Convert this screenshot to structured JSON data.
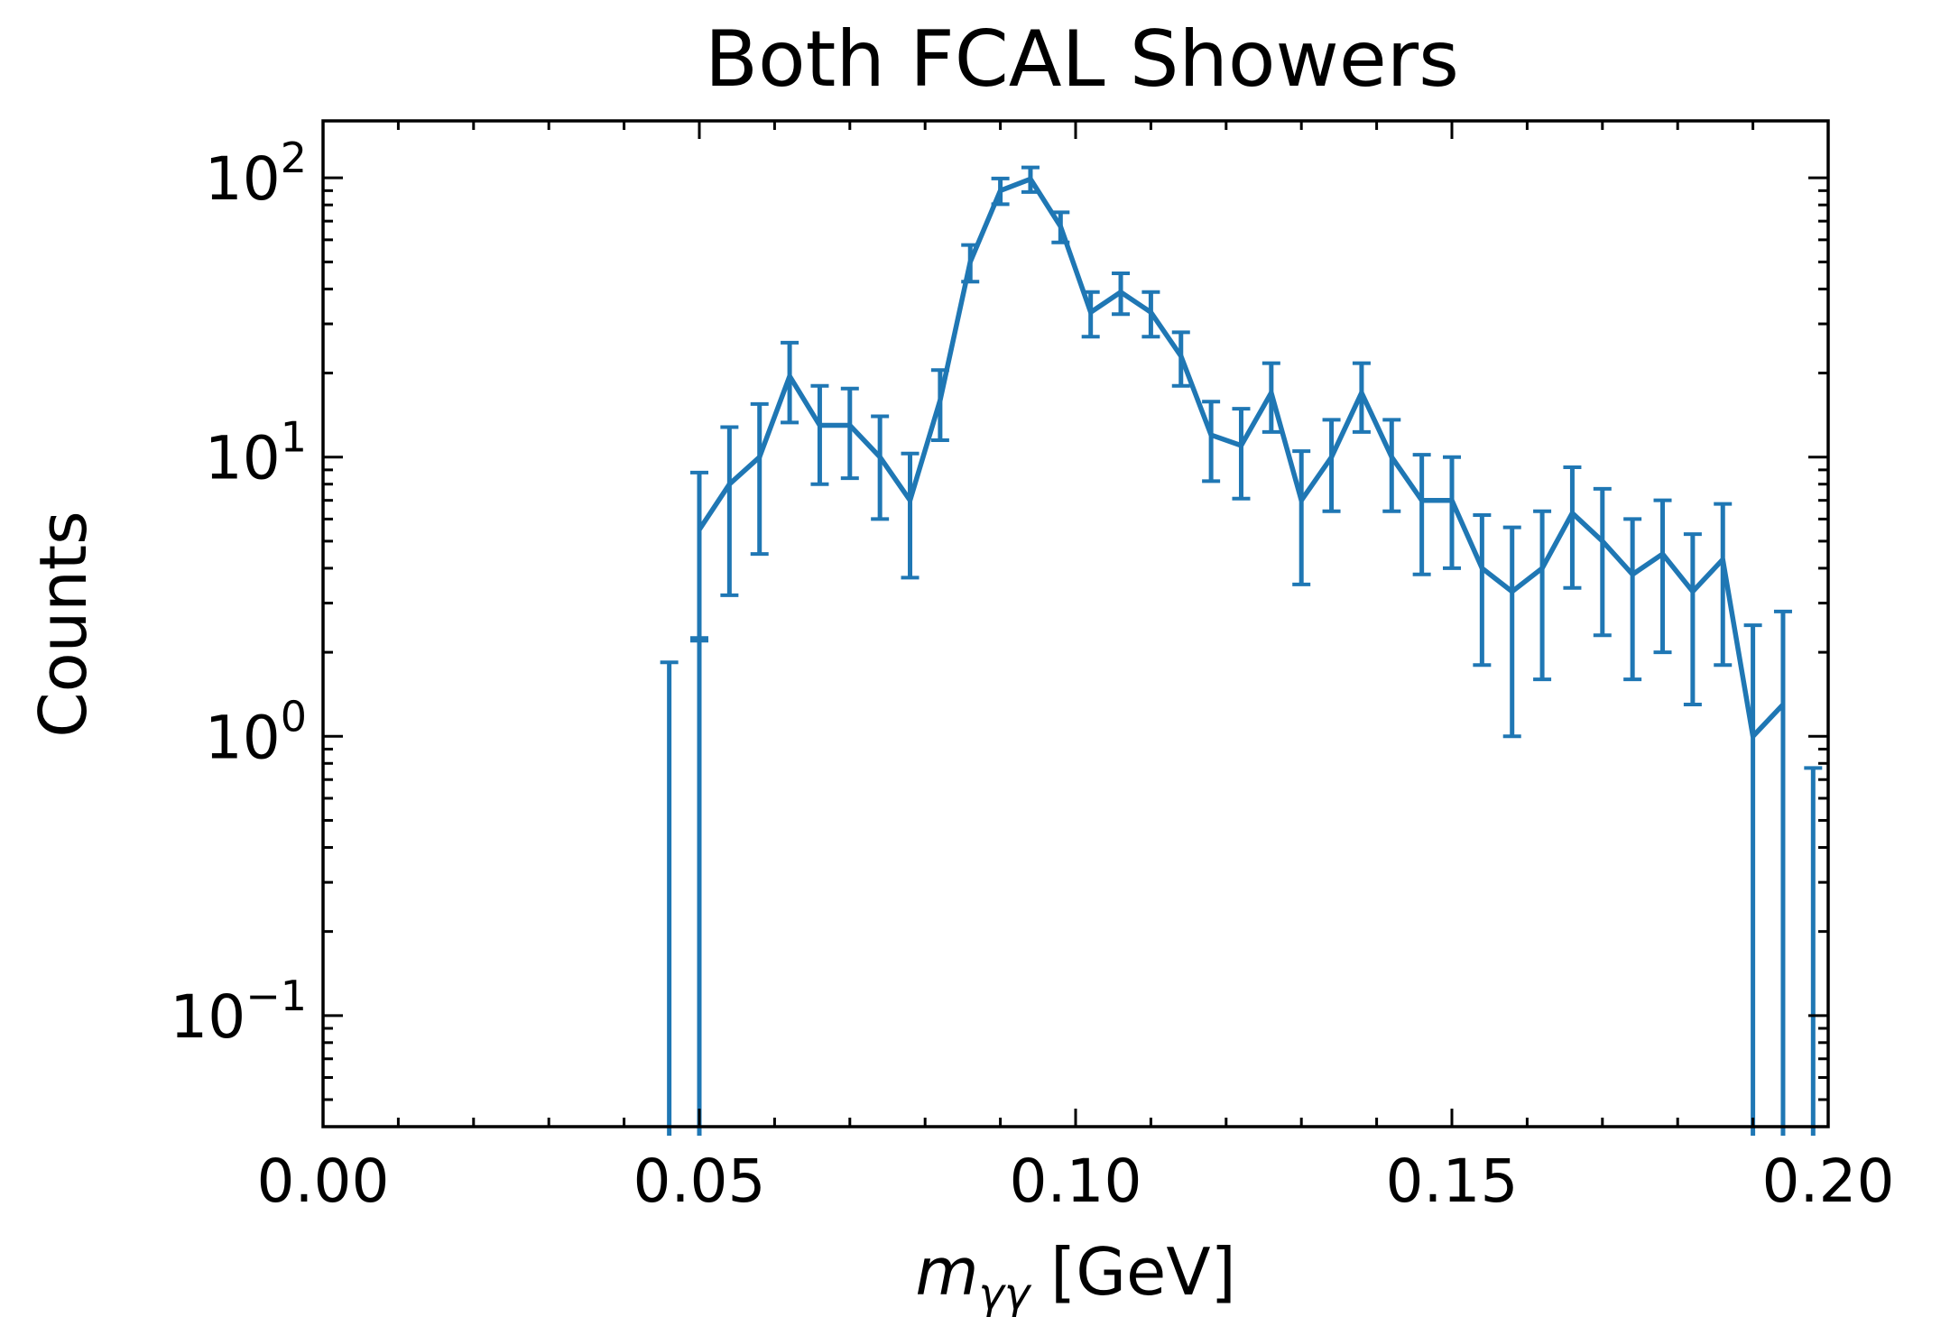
{
  "chart_data": {
    "type": "line",
    "title": "Both FCAL Showers",
    "xlabel": {
      "main": "m",
      "sub": "γγ",
      "unit": " [GeV]"
    },
    "ylabel": "Counts",
    "xlim": [
      0.0,
      0.2
    ],
    "ylim": [
      0.04,
      160
    ],
    "yscale": "log",
    "grid": false,
    "x_ticks": [
      {
        "value": 0.0,
        "label": "0.00"
      },
      {
        "value": 0.05,
        "label": "0.05"
      },
      {
        "value": 0.1,
        "label": "0.10"
      },
      {
        "value": 0.15,
        "label": "0.15"
      },
      {
        "value": 0.2,
        "label": "0.20"
      }
    ],
    "y_ticks": [
      {
        "value": 0.1,
        "base": "10",
        "exp": "−1"
      },
      {
        "value": 1,
        "base": "10",
        "exp": "0"
      },
      {
        "value": 10,
        "base": "10",
        "exp": "1"
      },
      {
        "value": 100,
        "base": "10",
        "exp": "2"
      }
    ],
    "series": [
      {
        "color": "#1f77b4",
        "points": [
          {
            "x": 0.046,
            "y": 0,
            "err": 1.84
          },
          {
            "x": 0.05,
            "y": 0,
            "err": 2.25
          },
          {
            "x": 0.05,
            "y": 5.5,
            "err": 3.3
          },
          {
            "x": 0.054,
            "y": 8.0,
            "err": 4.8
          },
          {
            "x": 0.058,
            "y": 10.0,
            "err": 5.5
          },
          {
            "x": 0.062,
            "y": 19.5,
            "err": 6.2
          },
          {
            "x": 0.066,
            "y": 13.0,
            "err": 5.0
          },
          {
            "x": 0.07,
            "y": 13.0,
            "err": 4.6
          },
          {
            "x": 0.074,
            "y": 10.0,
            "err": 4.0
          },
          {
            "x": 0.078,
            "y": 7.0,
            "err": 3.3
          },
          {
            "x": 0.082,
            "y": 16.0,
            "err": 4.5
          },
          {
            "x": 0.086,
            "y": 50.0,
            "err": 7.5
          },
          {
            "x": 0.09,
            "y": 90.0,
            "err": 9.5
          },
          {
            "x": 0.094,
            "y": 99.0,
            "err": 10.0
          },
          {
            "x": 0.098,
            "y": 67.0,
            "err": 8.3
          },
          {
            "x": 0.102,
            "y": 33.0,
            "err": 6.0
          },
          {
            "x": 0.106,
            "y": 39.0,
            "err": 6.5
          },
          {
            "x": 0.11,
            "y": 33.0,
            "err": 6.0
          },
          {
            "x": 0.114,
            "y": 23.0,
            "err": 5.0
          },
          {
            "x": 0.118,
            "y": 12.0,
            "err": 3.8
          },
          {
            "x": 0.122,
            "y": 11.0,
            "err": 3.9
          },
          {
            "x": 0.126,
            "y": 17.0,
            "err": 4.7
          },
          {
            "x": 0.13,
            "y": 7.0,
            "err": 3.5
          },
          {
            "x": 0.134,
            "y": 10.0,
            "err": 3.6
          },
          {
            "x": 0.138,
            "y": 17.0,
            "err": 4.7
          },
          {
            "x": 0.142,
            "y": 10.0,
            "err": 3.6
          },
          {
            "x": 0.146,
            "y": 7.0,
            "err": 3.2
          },
          {
            "x": 0.15,
            "y": 7.0,
            "err": 3.0
          },
          {
            "x": 0.154,
            "y": 4.0,
            "err": 2.2
          },
          {
            "x": 0.158,
            "y": 3.3,
            "err": 2.3
          },
          {
            "x": 0.162,
            "y": 4.0,
            "err": 2.4
          },
          {
            "x": 0.166,
            "y": 6.3,
            "err": 2.9
          },
          {
            "x": 0.17,
            "y": 5.0,
            "err": 2.7
          },
          {
            "x": 0.174,
            "y": 3.8,
            "err": 2.2
          },
          {
            "x": 0.178,
            "y": 4.5,
            "err": 2.5
          },
          {
            "x": 0.182,
            "y": 3.3,
            "err": 2.0
          },
          {
            "x": 0.186,
            "y": 4.3,
            "err": 2.5
          },
          {
            "x": 0.19,
            "y": 1.0,
            "err": 1.5
          },
          {
            "x": 0.194,
            "y": 1.3,
            "err": 1.5
          },
          {
            "x": 0.198,
            "y": 0,
            "err": 0.77
          }
        ]
      }
    ]
  }
}
